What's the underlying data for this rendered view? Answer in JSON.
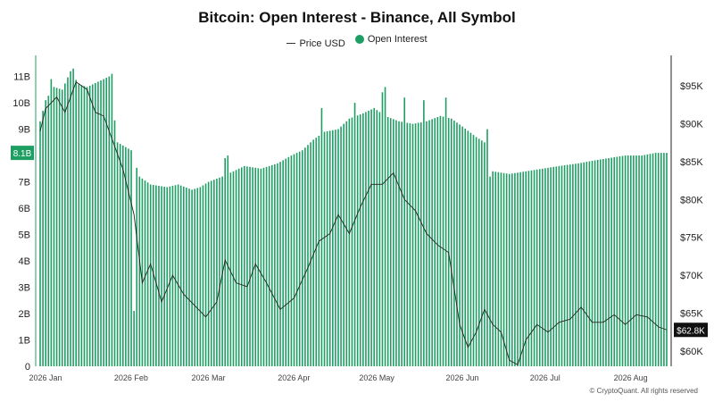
{
  "chart_data": {
    "type": "bar",
    "title": "Bitcoin: Open Interest - Binance, All Symbol",
    "legend": [
      "Price USD",
      "Open Interest"
    ],
    "colors": {
      "bars": "#1f9e63",
      "line": "#222222",
      "badge_left": "#1f9e63",
      "badge_right": "#111111"
    },
    "x_ticks": [
      "2026 Jan",
      "2026 Feb",
      "2026 Mar",
      "2026 Apr",
      "2026 May",
      "2026 Jun",
      "2026 Jul",
      "2026 Aug"
    ],
    "y_left_ticks": [
      "0",
      "1B",
      "2B",
      "3B",
      "4B",
      "5B",
      "6B",
      "7B",
      "8B",
      "9B",
      "10B",
      "11B"
    ],
    "y_right_ticks": [
      "$60K",
      "$65K",
      "$70K",
      "$75K",
      "$80K",
      "$85K",
      "$90K",
      "$95K"
    ],
    "y_left_range": [
      0,
      11.8
    ],
    "y_right_range": [
      58000,
      99000
    ],
    "current_oi_label": "8.1B",
    "current_price_label": "$62.8K",
    "series": [
      {
        "name": "Open Interest",
        "unit": "B",
        "anchors": [
          [
            "2026-01-01",
            9.3
          ],
          [
            "2026-01-03",
            10.1
          ],
          [
            "2026-01-06",
            10.6
          ],
          [
            "2026-01-09",
            10.5
          ],
          [
            "2026-01-12",
            11.2
          ],
          [
            "2026-01-15",
            10.7
          ],
          [
            "2026-01-18",
            10.6
          ],
          [
            "2026-01-22",
            10.8
          ],
          [
            "2026-01-26",
            11.0
          ],
          [
            "2026-01-29",
            8.5
          ],
          [
            "2026-02-03",
            8.2
          ],
          [
            "2026-02-06",
            7.2
          ],
          [
            "2026-02-10",
            6.9
          ],
          [
            "2026-02-16",
            6.8
          ],
          [
            "2026-02-20",
            6.9
          ],
          [
            "2026-02-25",
            6.7
          ],
          [
            "2026-02-28",
            6.8
          ],
          [
            "2026-03-03",
            7.0
          ],
          [
            "2026-03-08",
            7.2
          ],
          [
            "2026-03-12",
            7.4
          ],
          [
            "2026-03-16",
            7.6
          ],
          [
            "2026-03-22",
            7.5
          ],
          [
            "2026-03-28",
            7.7
          ],
          [
            "2026-04-02",
            8.0
          ],
          [
            "2026-04-06",
            8.2
          ],
          [
            "2026-04-10",
            8.6
          ],
          [
            "2026-04-14",
            8.9
          ],
          [
            "2026-04-19",
            9.0
          ],
          [
            "2026-04-23",
            9.4
          ],
          [
            "2026-04-28",
            9.6
          ],
          [
            "2026-05-02",
            9.8
          ],
          [
            "2026-05-06",
            9.5
          ],
          [
            "2026-05-11",
            9.3
          ],
          [
            "2026-05-16",
            9.2
          ],
          [
            "2026-05-21",
            9.3
          ],
          [
            "2026-05-26",
            9.5
          ],
          [
            "2026-05-30",
            9.4
          ],
          [
            "2026-06-03",
            9.1
          ],
          [
            "2026-06-08",
            8.7
          ],
          [
            "2026-06-11",
            8.5
          ],
          [
            "2026-06-14",
            7.4
          ],
          [
            "2026-06-20",
            7.3
          ],
          [
            "2026-06-26",
            7.4
          ],
          [
            "2026-07-02",
            7.5
          ],
          [
            "2026-07-08",
            7.6
          ],
          [
            "2026-07-15",
            7.7
          ],
          [
            "2026-07-20",
            7.8
          ],
          [
            "2026-07-26",
            7.9
          ],
          [
            "2026-08-01",
            8.0
          ],
          [
            "2026-08-07",
            8.0
          ],
          [
            "2026-08-12",
            8.1
          ],
          [
            "2026-08-16",
            8.1
          ]
        ],
        "spikes": [
          [
            "2026-01-05",
            10.9
          ],
          [
            "2026-01-13",
            11.3
          ],
          [
            "2026-01-27",
            11.1
          ],
          [
            "2026-03-09",
            7.9
          ],
          [
            "2026-03-10",
            8.0
          ],
          [
            "2026-04-13",
            9.8
          ],
          [
            "2026-04-25",
            10.0
          ],
          [
            "2026-05-05",
            10.4
          ],
          [
            "2026-05-06",
            10.6
          ],
          [
            "2026-05-13",
            10.2
          ],
          [
            "2026-05-20",
            10.1
          ],
          [
            "2026-05-28",
            10.2
          ],
          [
            "2026-06-12",
            9.0
          ]
        ],
        "dips": [
          [
            "2026-02-04",
            2.1
          ],
          [
            "2026-06-13",
            7.2
          ]
        ]
      },
      {
        "name": "Price USD",
        "unit": "USD",
        "anchors": [
          [
            "2026-01-01",
            89000
          ],
          [
            "2026-01-03",
            92000
          ],
          [
            "2026-01-07",
            93500
          ],
          [
            "2026-01-10",
            91500
          ],
          [
            "2026-01-14",
            95500
          ],
          [
            "2026-01-18",
            94500
          ],
          [
            "2026-01-21",
            91500
          ],
          [
            "2026-01-24",
            91000
          ],
          [
            "2026-01-27",
            88000
          ],
          [
            "2026-01-31",
            84000
          ],
          [
            "2026-02-04",
            78000
          ],
          [
            "2026-02-07",
            69000
          ],
          [
            "2026-02-10",
            71500
          ],
          [
            "2026-02-14",
            66500
          ],
          [
            "2026-02-18",
            70000
          ],
          [
            "2026-02-22",
            67500
          ],
          [
            "2026-02-26",
            66000
          ],
          [
            "2026-03-02",
            64500
          ],
          [
            "2026-03-06",
            66500
          ],
          [
            "2026-03-09",
            72000
          ],
          [
            "2026-03-13",
            69000
          ],
          [
            "2026-03-17",
            68500
          ],
          [
            "2026-03-20",
            71500
          ],
          [
            "2026-03-24",
            69000
          ],
          [
            "2026-03-29",
            65500
          ],
          [
            "2026-04-03",
            67000
          ],
          [
            "2026-04-08",
            71000
          ],
          [
            "2026-04-12",
            74500
          ],
          [
            "2026-04-16",
            75500
          ],
          [
            "2026-04-19",
            78000
          ],
          [
            "2026-04-23",
            75500
          ],
          [
            "2026-04-27",
            79000
          ],
          [
            "2026-05-01",
            82000
          ],
          [
            "2026-05-05",
            82000
          ],
          [
            "2026-05-09",
            83500
          ],
          [
            "2026-05-13",
            80000
          ],
          [
            "2026-05-17",
            78500
          ],
          [
            "2026-05-21",
            75500
          ],
          [
            "2026-05-25",
            74000
          ],
          [
            "2026-05-29",
            73000
          ],
          [
            "2026-06-02",
            63500
          ],
          [
            "2026-06-05",
            60500
          ],
          [
            "2026-06-08",
            62500
          ],
          [
            "2026-06-11",
            65500
          ],
          [
            "2026-06-14",
            63500
          ],
          [
            "2026-06-17",
            62500
          ],
          [
            "2026-06-20",
            58800
          ],
          [
            "2026-06-23",
            58200
          ],
          [
            "2026-06-26",
            61500
          ],
          [
            "2026-06-30",
            63500
          ],
          [
            "2026-07-04",
            62500
          ],
          [
            "2026-07-08",
            63800
          ],
          [
            "2026-07-12",
            64200
          ],
          [
            "2026-07-16",
            65800
          ],
          [
            "2026-07-20",
            63800
          ],
          [
            "2026-07-24",
            63800
          ],
          [
            "2026-07-28",
            64800
          ],
          [
            "2026-08-01",
            63500
          ],
          [
            "2026-08-05",
            64800
          ],
          [
            "2026-08-09",
            64500
          ],
          [
            "2026-08-13",
            63200
          ],
          [
            "2026-08-16",
            62800
          ]
        ]
      }
    ]
  },
  "footer": {
    "copyright": "© CryptoQuant. All rights reserved"
  }
}
